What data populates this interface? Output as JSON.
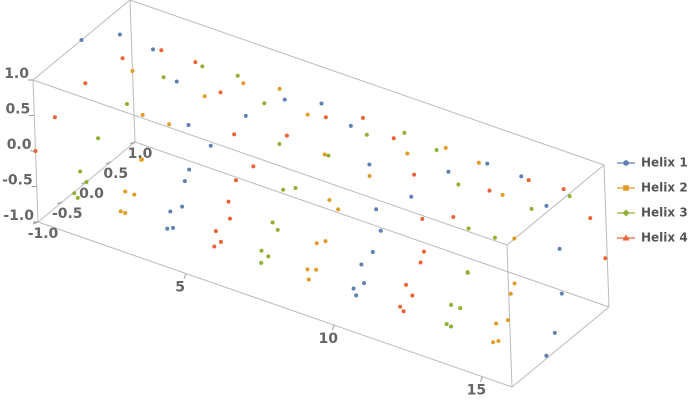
{
  "chart_data": {
    "type": "scatter3d",
    "x": [
      0,
      0.5,
      1,
      1.5,
      2,
      2.5,
      3,
      3.5,
      4,
      4.5,
      5,
      5.5,
      6,
      6.5,
      7,
      7.5,
      8,
      8.5,
      9,
      9.5,
      10,
      10.5,
      11,
      11.5,
      12,
      12.5,
      13,
      13.5,
      14,
      14.5,
      15,
      15.5,
      16
    ],
    "series": [
      {
        "name": "Helix 1",
        "color": "#5e81b5",
        "z": [
          1,
          0.88,
          0.54,
          0.07,
          -0.42,
          -0.8,
          -0.99,
          -0.94,
          -0.65,
          -0.21,
          0.28,
          0.71,
          0.96,
          0.98,
          0.75,
          0.35,
          -0.15,
          -0.6,
          -0.91,
          -1,
          -0.84,
          -0.48,
          0,
          0.48,
          0.84,
          1,
          0.91,
          0.59,
          0.14,
          -0.36,
          -0.76,
          -0.98,
          -0.96
        ],
        "y": [
          0,
          0.48,
          0.84,
          1,
          0.91,
          0.6,
          0.14,
          -0.35,
          -0.76,
          -0.98,
          -0.96,
          -0.71,
          -0.28,
          0.22,
          0.66,
          0.94,
          0.99,
          0.8,
          0.41,
          -0.08,
          -0.54,
          -0.88,
          -1,
          -0.88,
          -0.54,
          -0.07,
          0.42,
          0.8,
          0.99,
          0.93,
          0.65,
          0.19,
          -0.29
        ]
      },
      {
        "name": "Helix 2",
        "color": "#e19c24",
        "z": [
          0,
          -0.48,
          -0.84,
          -1,
          -0.91,
          -0.6,
          -0.14,
          0.35,
          0.76,
          0.98,
          0.96,
          0.71,
          0.28,
          -0.22,
          -0.66,
          -0.94,
          -0.99,
          -0.8,
          -0.41,
          0.08,
          0.54,
          0.88,
          1,
          0.88,
          0.54,
          0.07,
          -0.42,
          -0.8,
          -0.99,
          -0.93,
          -0.65,
          -0.19,
          0.29
        ],
        "y": [
          1,
          0.88,
          0.54,
          0.07,
          -0.42,
          -0.8,
          -0.99,
          -0.94,
          -0.65,
          -0.21,
          0.28,
          0.71,
          0.96,
          0.98,
          0.75,
          0.35,
          -0.15,
          -0.6,
          -0.91,
          -1,
          -0.84,
          -0.48,
          0,
          0.48,
          0.84,
          1,
          0.91,
          0.59,
          0.14,
          -0.36,
          -0.76,
          -0.98,
          -0.96
        ]
      },
      {
        "name": "Helix 3",
        "color": "#8fb032",
        "z": [
          -1,
          -0.88,
          -0.54,
          -0.07,
          0.42,
          0.8,
          0.99,
          0.94,
          0.65,
          0.21,
          -0.28,
          -0.71,
          -0.96,
          -0.98,
          -0.75,
          -0.35,
          0.15,
          0.6,
          0.91,
          1,
          0.84,
          0.48,
          0,
          -0.48,
          -0.84,
          -1,
          -0.91,
          -0.59,
          -0.14,
          0.36,
          0.76,
          0.98,
          0.96
        ],
        "y": [
          0,
          -0.48,
          -0.84,
          -1,
          -0.91,
          -0.6,
          -0.14,
          0.35,
          0.76,
          0.98,
          0.96,
          0.71,
          0.28,
          -0.22,
          -0.66,
          -0.94,
          -0.99,
          -0.8,
          -0.41,
          0.08,
          0.54,
          0.88,
          1,
          0.88,
          0.54,
          0.07,
          -0.42,
          -0.8,
          -0.99,
          -0.93,
          -0.65,
          -0.19,
          0.29
        ]
      },
      {
        "name": "Helix 4",
        "color": "#eb6235",
        "z": [
          0,
          0.48,
          0.84,
          1,
          0.91,
          0.6,
          0.14,
          -0.35,
          -0.76,
          -0.98,
          -0.96,
          -0.71,
          -0.28,
          0.22,
          0.66,
          0.94,
          0.99,
          0.8,
          0.41,
          -0.08,
          -0.54,
          -0.88,
          -1,
          -0.88,
          -0.54,
          -0.07,
          0.42,
          0.8,
          0.99,
          0.93,
          0.65,
          0.19,
          -0.29
        ],
        "y": [
          -1,
          -0.88,
          -0.54,
          -0.07,
          0.42,
          0.8,
          0.99,
          0.94,
          0.65,
          0.21,
          -0.28,
          -0.71,
          -0.96,
          -0.98,
          -0.75,
          -0.35,
          0.15,
          0.6,
          0.91,
          1,
          0.84,
          0.48,
          0,
          -0.48,
          -0.84,
          -1,
          -0.91,
          -0.59,
          -0.14,
          0.36,
          0.76,
          0.98,
          0.96
        ]
      }
    ],
    "xlim": [
      0,
      16
    ],
    "ylim": [
      -1,
      1
    ],
    "zlim": [
      -1,
      1
    ],
    "xticks": [
      5,
      10,
      15
    ],
    "yticks": [
      {
        "value": -1,
        "label": "-1.0"
      },
      {
        "value": -0.5,
        "label": "-0.5"
      },
      {
        "value": 0,
        "label": "0.0"
      },
      {
        "value": 0.5,
        "label": "0.5"
      },
      {
        "value": 1,
        "label": "1.0"
      }
    ],
    "zticks": [
      {
        "value": -1,
        "label": "-1.0"
      },
      {
        "value": -0.5,
        "label": "-0.5"
      },
      {
        "value": 0,
        "label": "0.0"
      },
      {
        "value": 0.5,
        "label": "0.5"
      },
      {
        "value": 1,
        "label": "1.0"
      }
    ],
    "legend": "right"
  }
}
